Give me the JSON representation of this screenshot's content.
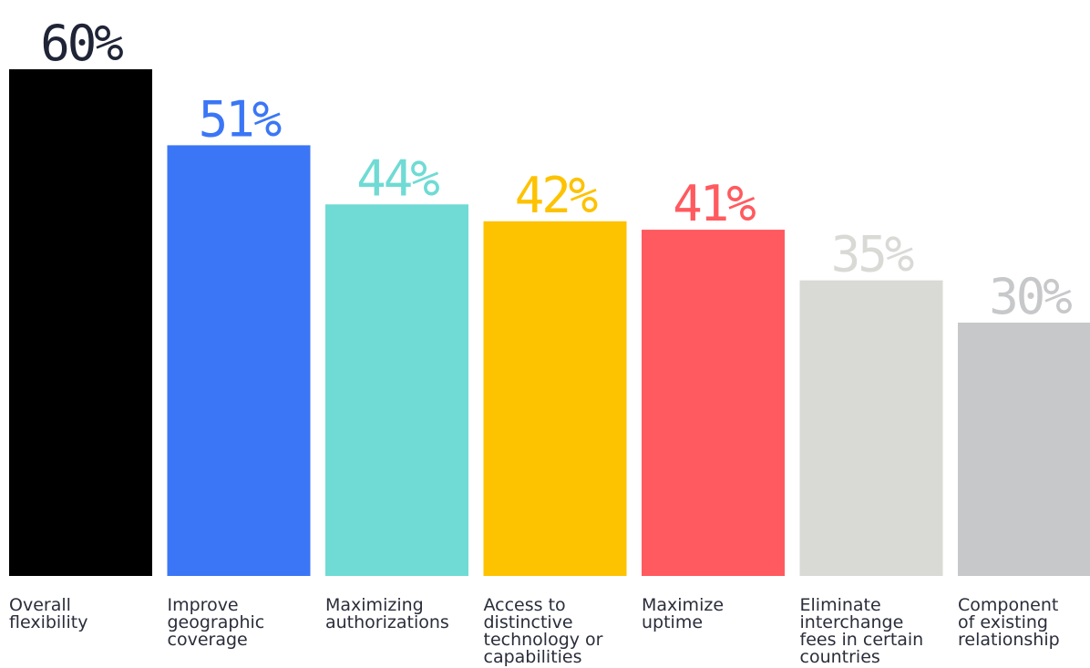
{
  "chart_data": {
    "type": "bar",
    "categories": [
      [
        "Overall",
        "flexibility"
      ],
      [
        "Improve",
        "geographic",
        "coverage"
      ],
      [
        "Maximizing",
        "authorizations"
      ],
      [
        "Access to",
        "distinctive",
        "technology or",
        "capabilities"
      ],
      [
        "Maximize",
        "uptime"
      ],
      [
        "Eliminate",
        "interchange",
        "fees in certain",
        "countries"
      ],
      [
        "Component",
        "of existing",
        "relationship"
      ]
    ],
    "values": [
      60,
      51,
      44,
      42,
      41,
      35,
      30
    ],
    "data_labels": [
      "60%",
      "51%",
      "44%",
      "42%",
      "41%",
      "35%",
      "30%"
    ],
    "bar_colors": [
      "#000000",
      "#3b76f6",
      "#6fdbd4",
      "#fdc200",
      "#ff5a5f",
      "#d9d9d6",
      "#c7c8ca"
    ],
    "label_colors": [
      "#1f2436",
      "#3b76f6",
      "#6fdbd4",
      "#fdc200",
      "#ff5a5f",
      "#d9d9d6",
      "#c7c8ca"
    ],
    "ylim": [
      0,
      60
    ],
    "grid": false,
    "legend": "none"
  }
}
